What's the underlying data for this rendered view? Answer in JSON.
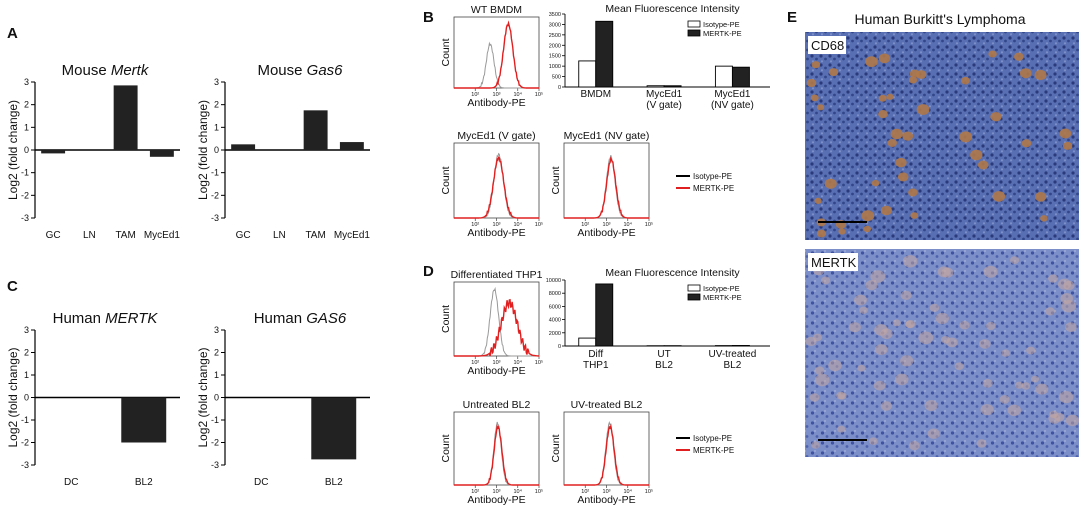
{
  "panel_letters": {
    "a": "A",
    "b": "B",
    "c": "C",
    "d": "D",
    "e": "E"
  },
  "colors": {
    "bar": "#222222",
    "isotype": "#999999",
    "mertk": "#e02020",
    "ihc_bg": "#4b63a8",
    "ihc_stain": "#b07848"
  },
  "chart_data": [
    {
      "id": "A1",
      "type": "bar",
      "title_prefix": "Mouse ",
      "title_gene": "Mertk",
      "categories": [
        "GC",
        "LN",
        "TAM",
        "MycEd1"
      ],
      "values": [
        -0.15,
        0.0,
        2.85,
        -0.3
      ],
      "ylabel": "Log2 (fold change)",
      "ylim": [
        -3,
        3
      ],
      "yticks": [
        "-3",
        "-2",
        "-1",
        "0",
        "1",
        "2",
        "3"
      ]
    },
    {
      "id": "A2",
      "type": "bar",
      "title_prefix": "Mouse ",
      "title_gene": "Gas6",
      "categories": [
        "GC",
        "LN",
        "TAM",
        "MycEd1"
      ],
      "values": [
        0.25,
        0.0,
        1.75,
        0.35
      ],
      "ylabel": "Log2 (fold change)",
      "ylim": [
        -3,
        3
      ],
      "yticks": [
        "-3",
        "-2",
        "-1",
        "0",
        "1",
        "2",
        "3"
      ]
    },
    {
      "id": "C1",
      "type": "bar",
      "title_prefix": "Human ",
      "title_gene": "MERTK",
      "categories": [
        "DC",
        "BL2"
      ],
      "values": [
        0.0,
        -2.0
      ],
      "ylabel": "Log2 (fold change)",
      "ylim": [
        -3,
        3
      ],
      "yticks": [
        "-3",
        "-2",
        "-1",
        "0",
        "1",
        "2",
        "3"
      ]
    },
    {
      "id": "C2",
      "type": "bar",
      "title_prefix": "Human ",
      "title_gene": "GAS6",
      "categories": [
        "DC",
        "BL2"
      ],
      "values": [
        0.0,
        -2.75
      ],
      "ylabel": "Log2 (fold change)",
      "ylim": [
        -3,
        3
      ],
      "yticks": [
        "-3",
        "-2",
        "-1",
        "0",
        "1",
        "2",
        "3"
      ]
    },
    {
      "id": "B_hist_wt",
      "type": "line",
      "title": "WT BMDM",
      "xlabel": "Antibody-PE",
      "ylabel": "Count",
      "xticks": [
        "10²",
        "10³",
        "10⁴",
        "10⁵"
      ],
      "series": [
        {
          "name": "Isotype-PE",
          "peak_log": 2.7,
          "width": 0.18,
          "height": 0.62
        },
        {
          "name": "MERTK-PE",
          "peak_log": 3.55,
          "width": 0.22,
          "height": 0.9
        }
      ]
    },
    {
      "id": "B_mfi",
      "type": "bar",
      "title": "Mean Fluorescence Intensity",
      "categories": [
        "BMDM",
        "MycEd1\n(V gate)",
        "MycEd1\n(NV gate)"
      ],
      "series": [
        {
          "name": "Isotype-PE",
          "values": [
            1250,
            60,
            1000
          ]
        },
        {
          "name": "MERTK-PE",
          "values": [
            3150,
            60,
            950
          ]
        }
      ],
      "ylim": [
        0,
        3500
      ],
      "yticks": [
        "0",
        "500",
        "1000",
        "1500",
        "2000",
        "2500",
        "3000",
        "3500"
      ]
    },
    {
      "id": "B_hist_v",
      "type": "line",
      "title": "MycEd1 (V gate)",
      "xlabel": "Antibody-PE",
      "ylabel": "Count",
      "xticks": [
        "10²",
        "10³",
        "10⁴",
        "10⁵"
      ],
      "series": [
        {
          "name": "Isotype-PE",
          "peak_log": 3.1,
          "width": 0.22,
          "height": 0.85
        },
        {
          "name": "MERTK-PE",
          "peak_log": 3.1,
          "width": 0.24,
          "height": 0.8
        }
      ]
    },
    {
      "id": "B_hist_nv",
      "type": "line",
      "title": "MycEd1 (NV gate)",
      "xlabel": "Antibody-PE",
      "ylabel": "Count",
      "xticks": [
        "10²",
        "10³",
        "10⁴",
        "10⁵"
      ],
      "series": [
        {
          "name": "Isotype-PE",
          "peak_log": 3.2,
          "width": 0.2,
          "height": 0.82
        },
        {
          "name": "MERTK-PE",
          "peak_log": 3.22,
          "width": 0.21,
          "height": 0.78
        }
      ]
    },
    {
      "id": "D_hist_diff",
      "type": "line",
      "title": "Differentiated THP1",
      "xlabel": "Antibody-PE",
      "ylabel": "Count",
      "xticks": [
        "10²",
        "10³",
        "10⁴",
        "10⁵"
      ],
      "series": [
        {
          "name": "Isotype-PE",
          "peak_log": 2.9,
          "width": 0.2,
          "height": 0.9
        },
        {
          "name": "MERTK-PE",
          "peak_log": 3.6,
          "width": 0.38,
          "height": 0.72
        }
      ]
    },
    {
      "id": "D_mfi",
      "type": "bar",
      "title": "Mean Fluorescence Intensity",
      "categories": [
        "Diff\nTHP1",
        "UT\nBL2",
        "UV-treated\nBL2"
      ],
      "series": [
        {
          "name": "Isotype-PE",
          "values": [
            1200,
            40,
            60
          ]
        },
        {
          "name": "MERTK-PE",
          "values": [
            9400,
            50,
            80
          ]
        }
      ],
      "ylim": [
        0,
        10000
      ],
      "yticks": [
        "0",
        "2000",
        "4000",
        "6000",
        "8000",
        "10000"
      ]
    },
    {
      "id": "D_hist_ut",
      "type": "line",
      "title": "Untreated BL2",
      "xlabel": "Antibody-PE",
      "ylabel": "Count",
      "xticks": [
        "10²",
        "10³",
        "10⁴",
        "10⁵"
      ],
      "series": [
        {
          "name": "Isotype-PE",
          "peak_log": 3.05,
          "width": 0.17,
          "height": 0.85
        },
        {
          "name": "MERTK-PE",
          "peak_log": 3.07,
          "width": 0.18,
          "height": 0.8
        }
      ]
    },
    {
      "id": "D_hist_uv",
      "type": "line",
      "title": "UV-treated BL2",
      "xlabel": "Antibody-PE",
      "ylabel": "Count",
      "xticks": [
        "10²",
        "10³",
        "10⁴",
        "10⁵"
      ],
      "series": [
        {
          "name": "Isotype-PE",
          "peak_log": 3.15,
          "width": 0.18,
          "height": 0.85
        },
        {
          "name": "MERTK-PE",
          "peak_log": 3.17,
          "width": 0.19,
          "height": 0.8
        }
      ]
    }
  ],
  "legends": {
    "mfi": [
      "Isotype-PE",
      "MERTK-PE"
    ],
    "hist": [
      "Isotype-PE",
      "MERTK-PE"
    ]
  },
  "ihc": {
    "title": "Human Burkitt's Lymphoma",
    "top_label": "CD68",
    "bottom_label": "MERTK"
  }
}
